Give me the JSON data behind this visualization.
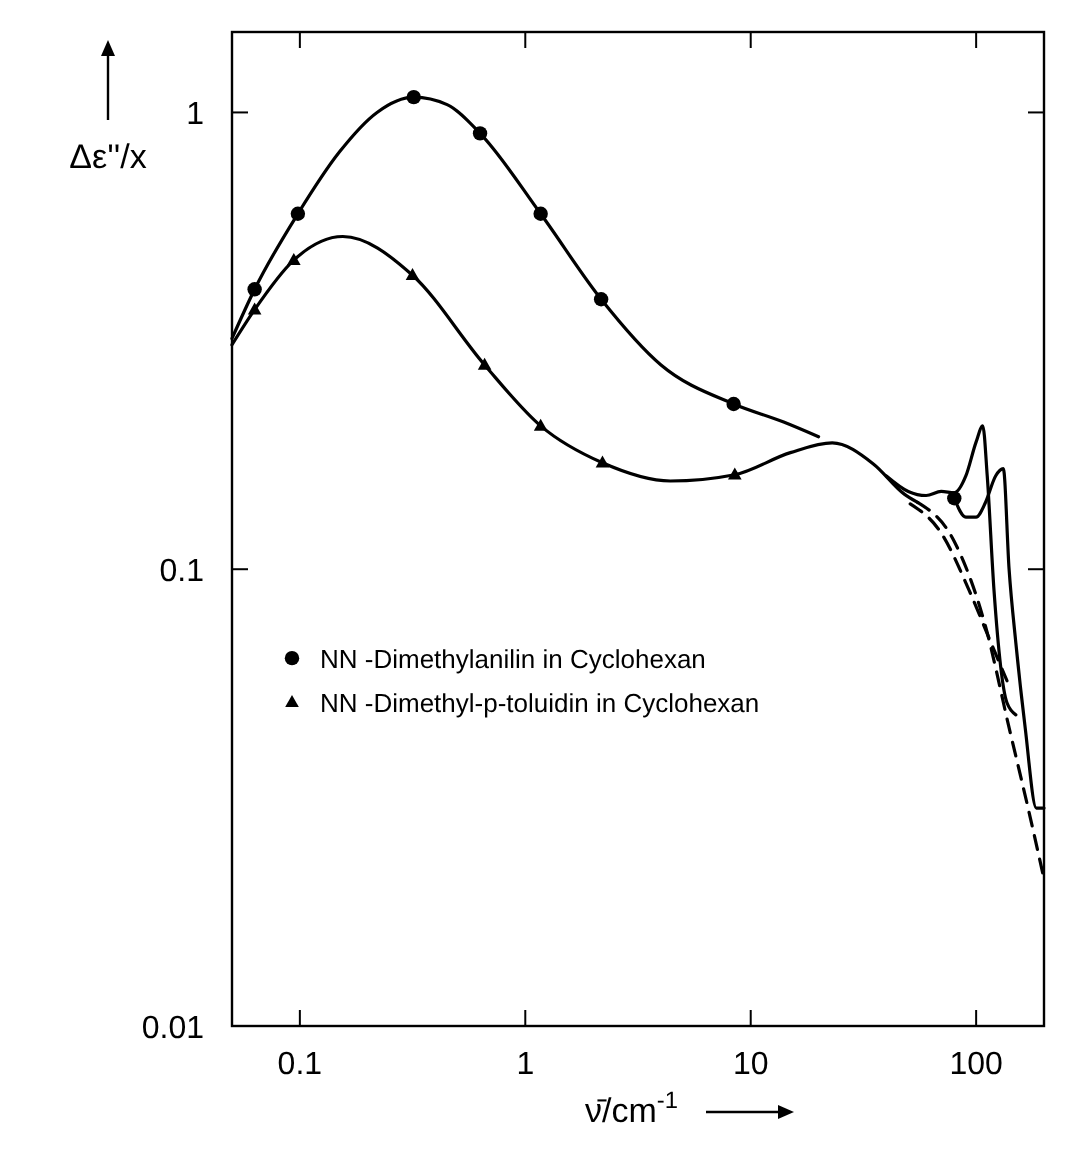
{
  "chart_data": {
    "type": "line",
    "xlabel": "ν̄/cm$^{-1}$",
    "ylabel": "Δε''/x",
    "log": "xy",
    "xlim": [
      0.05,
      200
    ],
    "ylim": [
      0.01,
      1.5
    ],
    "xticks": [
      0.1,
      1,
      10,
      100
    ],
    "yticks": [
      0.01,
      0.1,
      1
    ],
    "grid": false,
    "legend": "left",
    "series": [
      {
        "type": "line",
        "color": "#000000",
        "marker": "none",
        "line_style": "solid",
        "x": [
          0.05,
          0.063,
          0.098,
          0.15,
          0.22,
          0.32,
          0.45,
          0.63,
          1.17,
          2.17,
          4,
          8.4,
          14,
          20
        ],
        "values": [
          0.32,
          0.41,
          0.6,
          0.82,
          1.0,
          1.08,
          1.04,
          0.9,
          0.6,
          0.39,
          0.28,
          0.23,
          0.21,
          0.195
        ]
      },
      {
        "type": "line",
        "color": "#000000",
        "marker": "none",
        "line_style": "solid",
        "x": [
          0.05,
          0.063,
          0.094,
          0.155,
          0.316,
          0.66,
          1.17,
          2.2,
          4.4,
          8.5,
          15,
          23,
          35,
          48,
          55
        ],
        "values": [
          0.31,
          0.37,
          0.475,
          0.535,
          0.44,
          0.28,
          0.206,
          0.171,
          0.156,
          0.161,
          0.18,
          0.189,
          0.17,
          0.146,
          0.14
        ]
      },
      {
        "type": "line",
        "color": "#000000",
        "marker": "none",
        "line_style": "solid",
        "x": [
          40,
          50,
          60,
          70,
          80,
          90,
          100,
          107,
          112,
          120,
          137,
          150
        ],
        "values": [
          0.16,
          0.148,
          0.145,
          0.148,
          0.147,
          0.16,
          0.19,
          0.206,
          0.16,
          0.09,
          0.051,
          0.048
        ]
      },
      {
        "type": "line",
        "color": "#000000",
        "marker": "none",
        "line_style": "solid",
        "x": [
          80,
          90,
          100,
          110,
          122,
          132,
          140,
          150,
          165,
          185,
          200
        ],
        "values": [
          0.143,
          0.13,
          0.13,
          0.14,
          0.16,
          0.166,
          0.1,
          0.069,
          0.045,
          0.03,
          0.03
        ]
      },
      {
        "type": "line",
        "color": "#000000",
        "marker": "none",
        "line_style": "dashed",
        "x": [
          51,
          70,
          93,
          115,
          137
        ],
        "values": [
          0.139,
          0.12,
          0.09,
          0.07,
          0.057
        ]
      },
      {
        "type": "line",
        "color": "#000000",
        "marker": "none",
        "line_style": "dashed",
        "x": [
          55,
          80,
          110,
          140,
          170,
          200
        ],
        "values": [
          0.14,
          0.115,
          0.075,
          0.045,
          0.03,
          0.021
        ]
      },
      {
        "type": "scatter",
        "name": "NN -Dimethylanilin in Cyclohexan",
        "color": "#000000",
        "marker": "circle",
        "x": [
          0.063,
          0.098,
          0.32,
          0.63,
          1.17,
          2.17,
          8.4,
          80
        ],
        "values": [
          0.41,
          0.6,
          1.08,
          0.9,
          0.6,
          0.39,
          0.23,
          0.143
        ]
      },
      {
        "type": "scatter",
        "name": "NN -Dimethyl-p-toluidin in Cyclohexan",
        "color": "#000000",
        "marker": "triangle",
        "x": [
          0.063,
          0.094,
          0.316,
          0.66,
          1.17,
          2.2,
          8.5
        ],
        "values": [
          0.37,
          0.475,
          0.44,
          0.28,
          0.206,
          0.171,
          0.161
        ]
      }
    ]
  }
}
